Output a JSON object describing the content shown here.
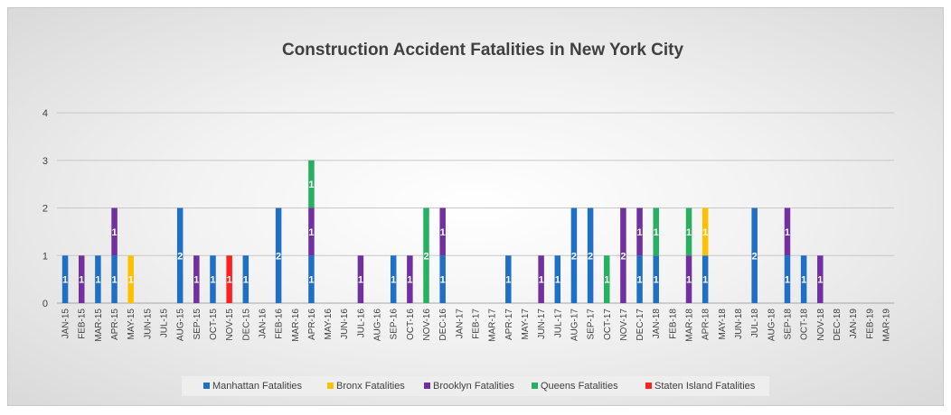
{
  "chart_data": {
    "type": "bar",
    "stacked": true,
    "title": "Construction Accident Fatalities in New York City",
    "ylim": [
      0,
      4
    ],
    "yticks": [
      "0",
      "1",
      "2",
      "3",
      "4"
    ],
    "grid": true,
    "legend_position": "bottom",
    "categories": [
      "JAN-15",
      "FEB-15",
      "MAR-15",
      "APR-15",
      "MAY-15",
      "JUN-15",
      "JUL-15",
      "AUG-15",
      "SEP-15",
      "OCT-15",
      "NOV-15",
      "DEC-15",
      "JAN-16",
      "FEB-16",
      "MAR-16",
      "APR-16",
      "MAY-16",
      "JUN-16",
      "JUL-16",
      "AUG-16",
      "SEP-16",
      "OCT-16",
      "NOV-16",
      "DEC-16",
      "JAN-17",
      "FEB-17",
      "MAR-17",
      "APR-17",
      "MAY-17",
      "JUN-17",
      "JUL-17",
      "AUG-17",
      "SEP-17",
      "OCT-17",
      "NOV-17",
      "DEC-17",
      "JAN-18",
      "FEB-18",
      "MAR-18",
      "APR-18",
      "MAY-18",
      "JUN-18",
      "JUL-18",
      "AUG-18",
      "SEP-18",
      "OCT-18",
      "NOV-18",
      "DEC-18",
      "JAN-19",
      "FEB-19",
      "MAR-19"
    ],
    "series": [
      {
        "name": "Manhattan Fatalities",
        "color": "#1f6fc5",
        "values": [
          1,
          0,
          1,
          1,
          0,
          0,
          0,
          2,
          0,
          1,
          0,
          1,
          0,
          2,
          0,
          1,
          0,
          0,
          0,
          0,
          1,
          0,
          0,
          1,
          0,
          0,
          0,
          1,
          0,
          0,
          1,
          2,
          2,
          0,
          0,
          1,
          1,
          0,
          0,
          1,
          0,
          0,
          2,
          0,
          1,
          1,
          0,
          0,
          0,
          0,
          0
        ]
      },
      {
        "name": "Bronx Fatalities",
        "color": "#ffc000",
        "values": [
          0,
          0,
          0,
          0,
          1,
          0,
          0,
          0,
          0,
          0,
          0,
          0,
          0,
          0,
          0,
          0,
          0,
          0,
          0,
          0,
          0,
          0,
          0,
          0,
          0,
          0,
          0,
          0,
          0,
          0,
          0,
          0,
          0,
          0,
          0,
          0,
          0,
          0,
          0,
          1,
          0,
          0,
          0,
          0,
          0,
          0,
          0,
          0,
          0,
          0,
          0
        ]
      },
      {
        "name": "Brooklyn Fatalities",
        "color": "#7030a0",
        "values": [
          0,
          1,
          0,
          1,
          0,
          0,
          0,
          0,
          1,
          0,
          0,
          0,
          0,
          0,
          0,
          1,
          0,
          0,
          1,
          0,
          0,
          1,
          0,
          1,
          0,
          0,
          0,
          0,
          0,
          1,
          0,
          0,
          0,
          0,
          2,
          1,
          0,
          0,
          1,
          0,
          0,
          0,
          0,
          0,
          1,
          0,
          1,
          0,
          0,
          0,
          0
        ]
      },
      {
        "name": "Queens Fatalities",
        "color": "#27b060",
        "values": [
          0,
          0,
          0,
          0,
          0,
          0,
          0,
          0,
          0,
          0,
          0,
          0,
          0,
          0,
          0,
          1,
          0,
          0,
          0,
          0,
          0,
          0,
          2,
          0,
          0,
          0,
          0,
          0,
          0,
          0,
          0,
          0,
          0,
          1,
          0,
          0,
          1,
          0,
          1,
          0,
          0,
          0,
          0,
          0,
          0,
          0,
          0,
          0,
          0,
          0,
          0
        ]
      },
      {
        "name": "Staten Island Fatalities",
        "color": "#ff2020",
        "values": [
          0,
          0,
          0,
          0,
          0,
          0,
          0,
          0,
          0,
          0,
          1,
          0,
          0,
          0,
          0,
          0,
          0,
          0,
          0,
          0,
          0,
          0,
          0,
          0,
          0,
          0,
          0,
          0,
          0,
          0,
          0,
          0,
          0,
          0,
          0,
          0,
          0,
          0,
          0,
          0,
          0,
          0,
          0,
          0,
          0,
          0,
          0,
          0,
          0,
          0,
          0
        ]
      }
    ]
  }
}
